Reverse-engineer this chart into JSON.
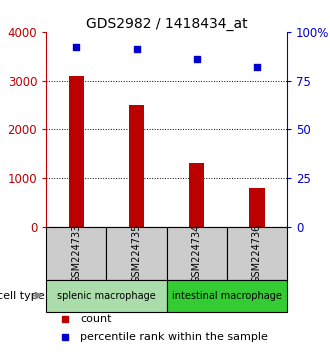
{
  "title": "GDS2982 / 1418434_at",
  "samples": [
    "GSM224733",
    "GSM224735",
    "GSM224734",
    "GSM224736"
  ],
  "counts": [
    3100,
    2500,
    1300,
    800
  ],
  "percentiles": [
    92,
    91,
    86,
    82
  ],
  "ylim_left": [
    0,
    4000
  ],
  "ylim_right": [
    0,
    100
  ],
  "yticks_left": [
    0,
    1000,
    2000,
    3000,
    4000
  ],
  "yticks_right": [
    0,
    25,
    50,
    75,
    100
  ],
  "ytick_right_labels": [
    "0",
    "25",
    "50",
    "75",
    "100%"
  ],
  "bar_color": "#bb0000",
  "dot_color": "#0000cc",
  "groups": [
    {
      "label": "splenic macrophage",
      "color": "#aaddaa",
      "samples": [
        0,
        1
      ]
    },
    {
      "label": "intestinal macrophage",
      "color": "#33cc33",
      "samples": [
        2,
        3
      ]
    }
  ],
  "sample_box_color": "#cccccc",
  "cell_type_label": "cell type",
  "legend_count": "count",
  "legend_percentile": "percentile rank within the sample",
  "bar_width": 0.25,
  "title_fontsize": 10,
  "tick_fontsize": 8.5
}
